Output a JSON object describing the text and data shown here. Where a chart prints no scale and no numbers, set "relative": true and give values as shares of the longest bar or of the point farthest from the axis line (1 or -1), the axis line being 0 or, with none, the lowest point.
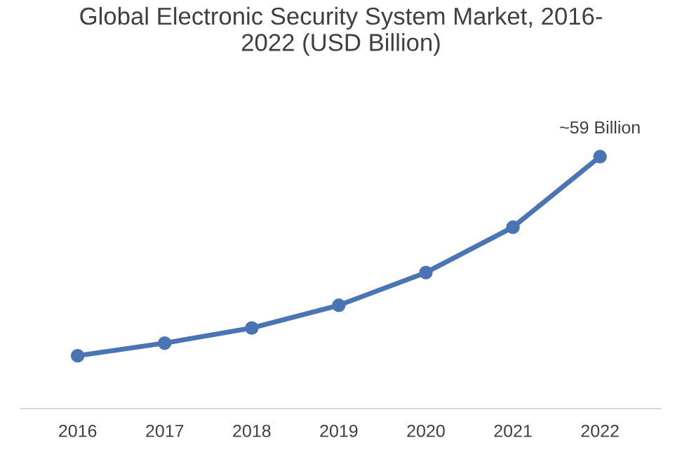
{
  "chart_data": {
    "type": "line",
    "title": "Global Electronic Security System Market, 2016-\n2022 (USD Billion)",
    "categories": [
      "2016",
      "2017",
      "2018",
      "2019",
      "2020",
      "2021",
      "2022"
    ],
    "values": [
      0.21,
      0.26,
      0.32,
      0.41,
      0.54,
      0.72,
      1.0
    ],
    "color": "#4a74b4",
    "relative": true,
    "marker": "circle",
    "line_style": "solid",
    "grid": false,
    "annotations": [
      {
        "text": "~59 Billion",
        "x": "2022",
        "y": 1.0
      }
    ]
  }
}
